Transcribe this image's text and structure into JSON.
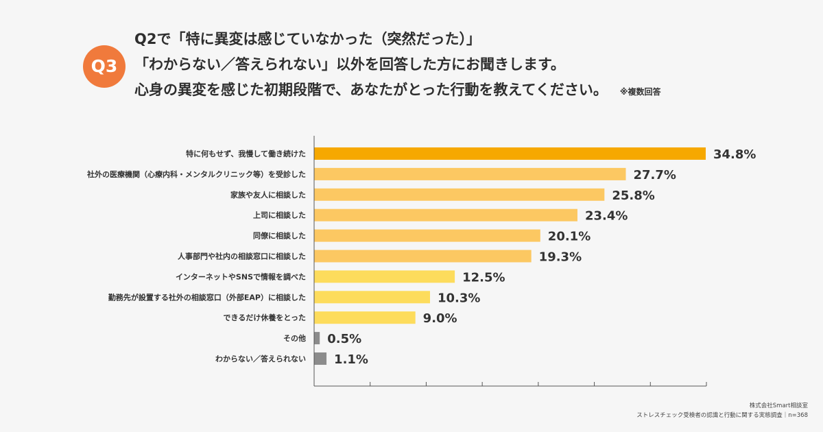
{
  "badge": "Q3",
  "question": {
    "lines": [
      "Q2で「特に異変は感じていなかった（突然だった）」",
      "「わからない／答えられない」以外を回答した方にお聞きします。",
      "心身の異変を感じた初期段階で、あなたがとった行動を教えてください。"
    ],
    "note": "※複数回答"
  },
  "chart_data": {
    "type": "bar",
    "orientation": "horizontal",
    "categories": [
      "特に何もせず、我慢して働き続けた",
      "社外の医療機関（心療内科・メンタルクリニック等）を受診した",
      "家族や友人に相談した",
      "上司に相談した",
      "同僚に相談した",
      "人事部門や社内の相談窓口に相談した",
      "インターネットやSNSで情報を調べた",
      "勤務先が設置する社外の相談窓口（外部EAP）に相談した",
      "できるだけ休養をとった",
      "その他",
      "わからない／答えられない"
    ],
    "values": [
      34.8,
      27.7,
      25.8,
      23.4,
      20.1,
      19.3,
      12.5,
      10.3,
      9.0,
      0.5,
      1.1
    ],
    "value_labels": [
      "34.8%",
      "27.7%",
      "25.8%",
      "23.4%",
      "20.1%",
      "19.3%",
      "12.5%",
      "10.3%",
      "9.0%",
      "0.5%",
      "1.1%"
    ],
    "colors": [
      "#f6a800",
      "#fcc862",
      "#fcc862",
      "#fcc862",
      "#fcc862",
      "#fcc862",
      "#fddc5c",
      "#fddc5c",
      "#fddc5c",
      "#8c8c8c",
      "#8c8c8c"
    ],
    "xlim": [
      0,
      35
    ],
    "grid": false
  },
  "source": {
    "company": "株式会社Smart相談室",
    "survey": "ストレスチェック受検者の認識と行動に関する実態調査｜n=368"
  }
}
